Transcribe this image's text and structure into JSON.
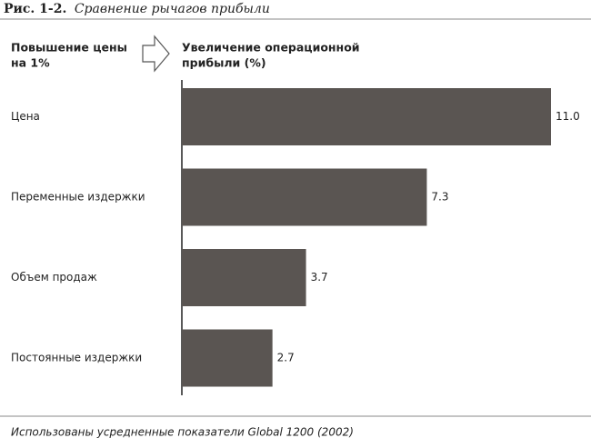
{
  "chart_data": {
    "type": "barh",
    "figure_label": "Рис. 1-2.",
    "title": "Сравнение рычагов прибыли",
    "category_header": [
      "Повышение цены",
      "на 1%"
    ],
    "value_header": [
      "Увеличение операционной",
      "прибыли (%)"
    ],
    "categories": [
      "Цена",
      "Переменные издержки",
      "Объем продаж",
      "Постоянные издержки"
    ],
    "values": [
      11.0,
      7.3,
      3.7,
      2.7
    ],
    "value_labels": [
      "11.0",
      "7.3",
      "3.7",
      "2.7"
    ],
    "color": "#5a5552",
    "note": "Использованы усредненные показатели Global 1200 (2002)"
  }
}
